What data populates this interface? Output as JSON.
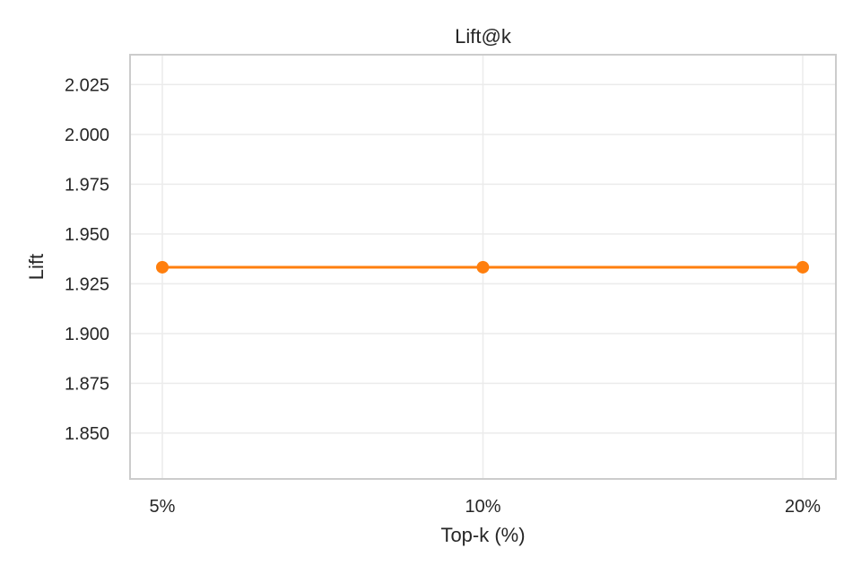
{
  "chart_data": {
    "type": "line",
    "title": "Lift@k",
    "xlabel": "Top-k (%)",
    "ylabel": "Lift",
    "categories": [
      "5%",
      "10%",
      "20%"
    ],
    "series": [
      {
        "values": [
          1.9333,
          1.9333,
          1.9333
        ],
        "color": "#ff7f0e",
        "marker": "circle"
      }
    ],
    "ylim": [
      1.827,
      2.04
    ],
    "yticks": [
      1.85,
      1.875,
      1.9,
      1.925,
      1.95,
      1.975,
      2.0,
      2.025
    ],
    "ytick_labels": [
      "1.850",
      "1.875",
      "1.900",
      "1.925",
      "1.950",
      "1.975",
      "2.000",
      "2.025"
    ],
    "grid": true,
    "legend": "none",
    "colors": {
      "grid": "#ebebeb",
      "frame": "#cccccc",
      "text": "#262626"
    }
  }
}
